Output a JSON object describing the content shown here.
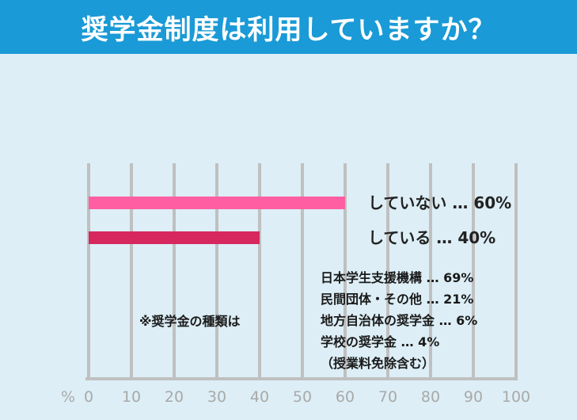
{
  "title": "奨学金制度は利用していますか？",
  "colors": {
    "header": "#1a9ad6",
    "background": "#ddeef6",
    "bar_not_using": "#ff5fa2",
    "bar_using": "#d6275f",
    "grid": "#c0c0c0"
  },
  "chart_data": {
    "type": "bar",
    "orientation": "horizontal",
    "title": "奨学金制度は利用していますか？",
    "xlabel": "%",
    "xlim": [
      0,
      100
    ],
    "xticks": [
      0,
      10,
      20,
      30,
      40,
      50,
      60,
      70,
      80,
      90,
      100
    ],
    "grid": true,
    "series": [
      {
        "name": "していない",
        "value": 60,
        "label": "していない … 60%"
      },
      {
        "name": "している",
        "value": 40,
        "label": "している … 40%"
      }
    ]
  },
  "note": {
    "title": "※奨学金の種類は",
    "items": [
      "日本学生支援機構 … 69%",
      "民間団体・その他 … 21%",
      "地方自治体の奨学金 … 6%",
      "学校の奨学金 … 4%",
      "（授業料免除含む）"
    ]
  }
}
